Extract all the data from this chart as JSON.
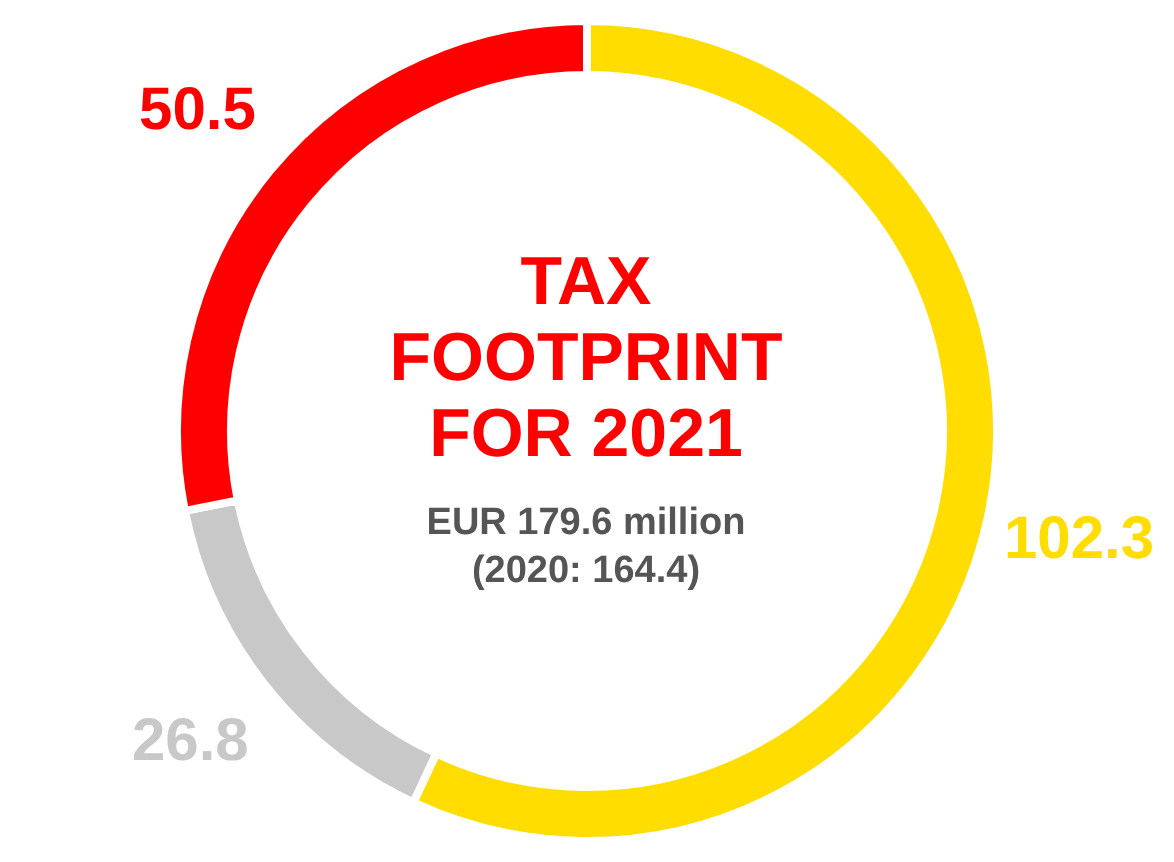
{
  "chart_data": {
    "type": "donut",
    "title": "TAX FOOTPRINT FOR 2021",
    "subtitle": "EUR 179.6 million (2020: 164.4)",
    "categories": [
      null,
      null,
      null
    ],
    "values": [
      102.3,
      26.8,
      50.5
    ],
    "colors": [
      "#ffdd00",
      "#c8c8c8",
      "#ff0000"
    ],
    "data_labels": true
  }
}
